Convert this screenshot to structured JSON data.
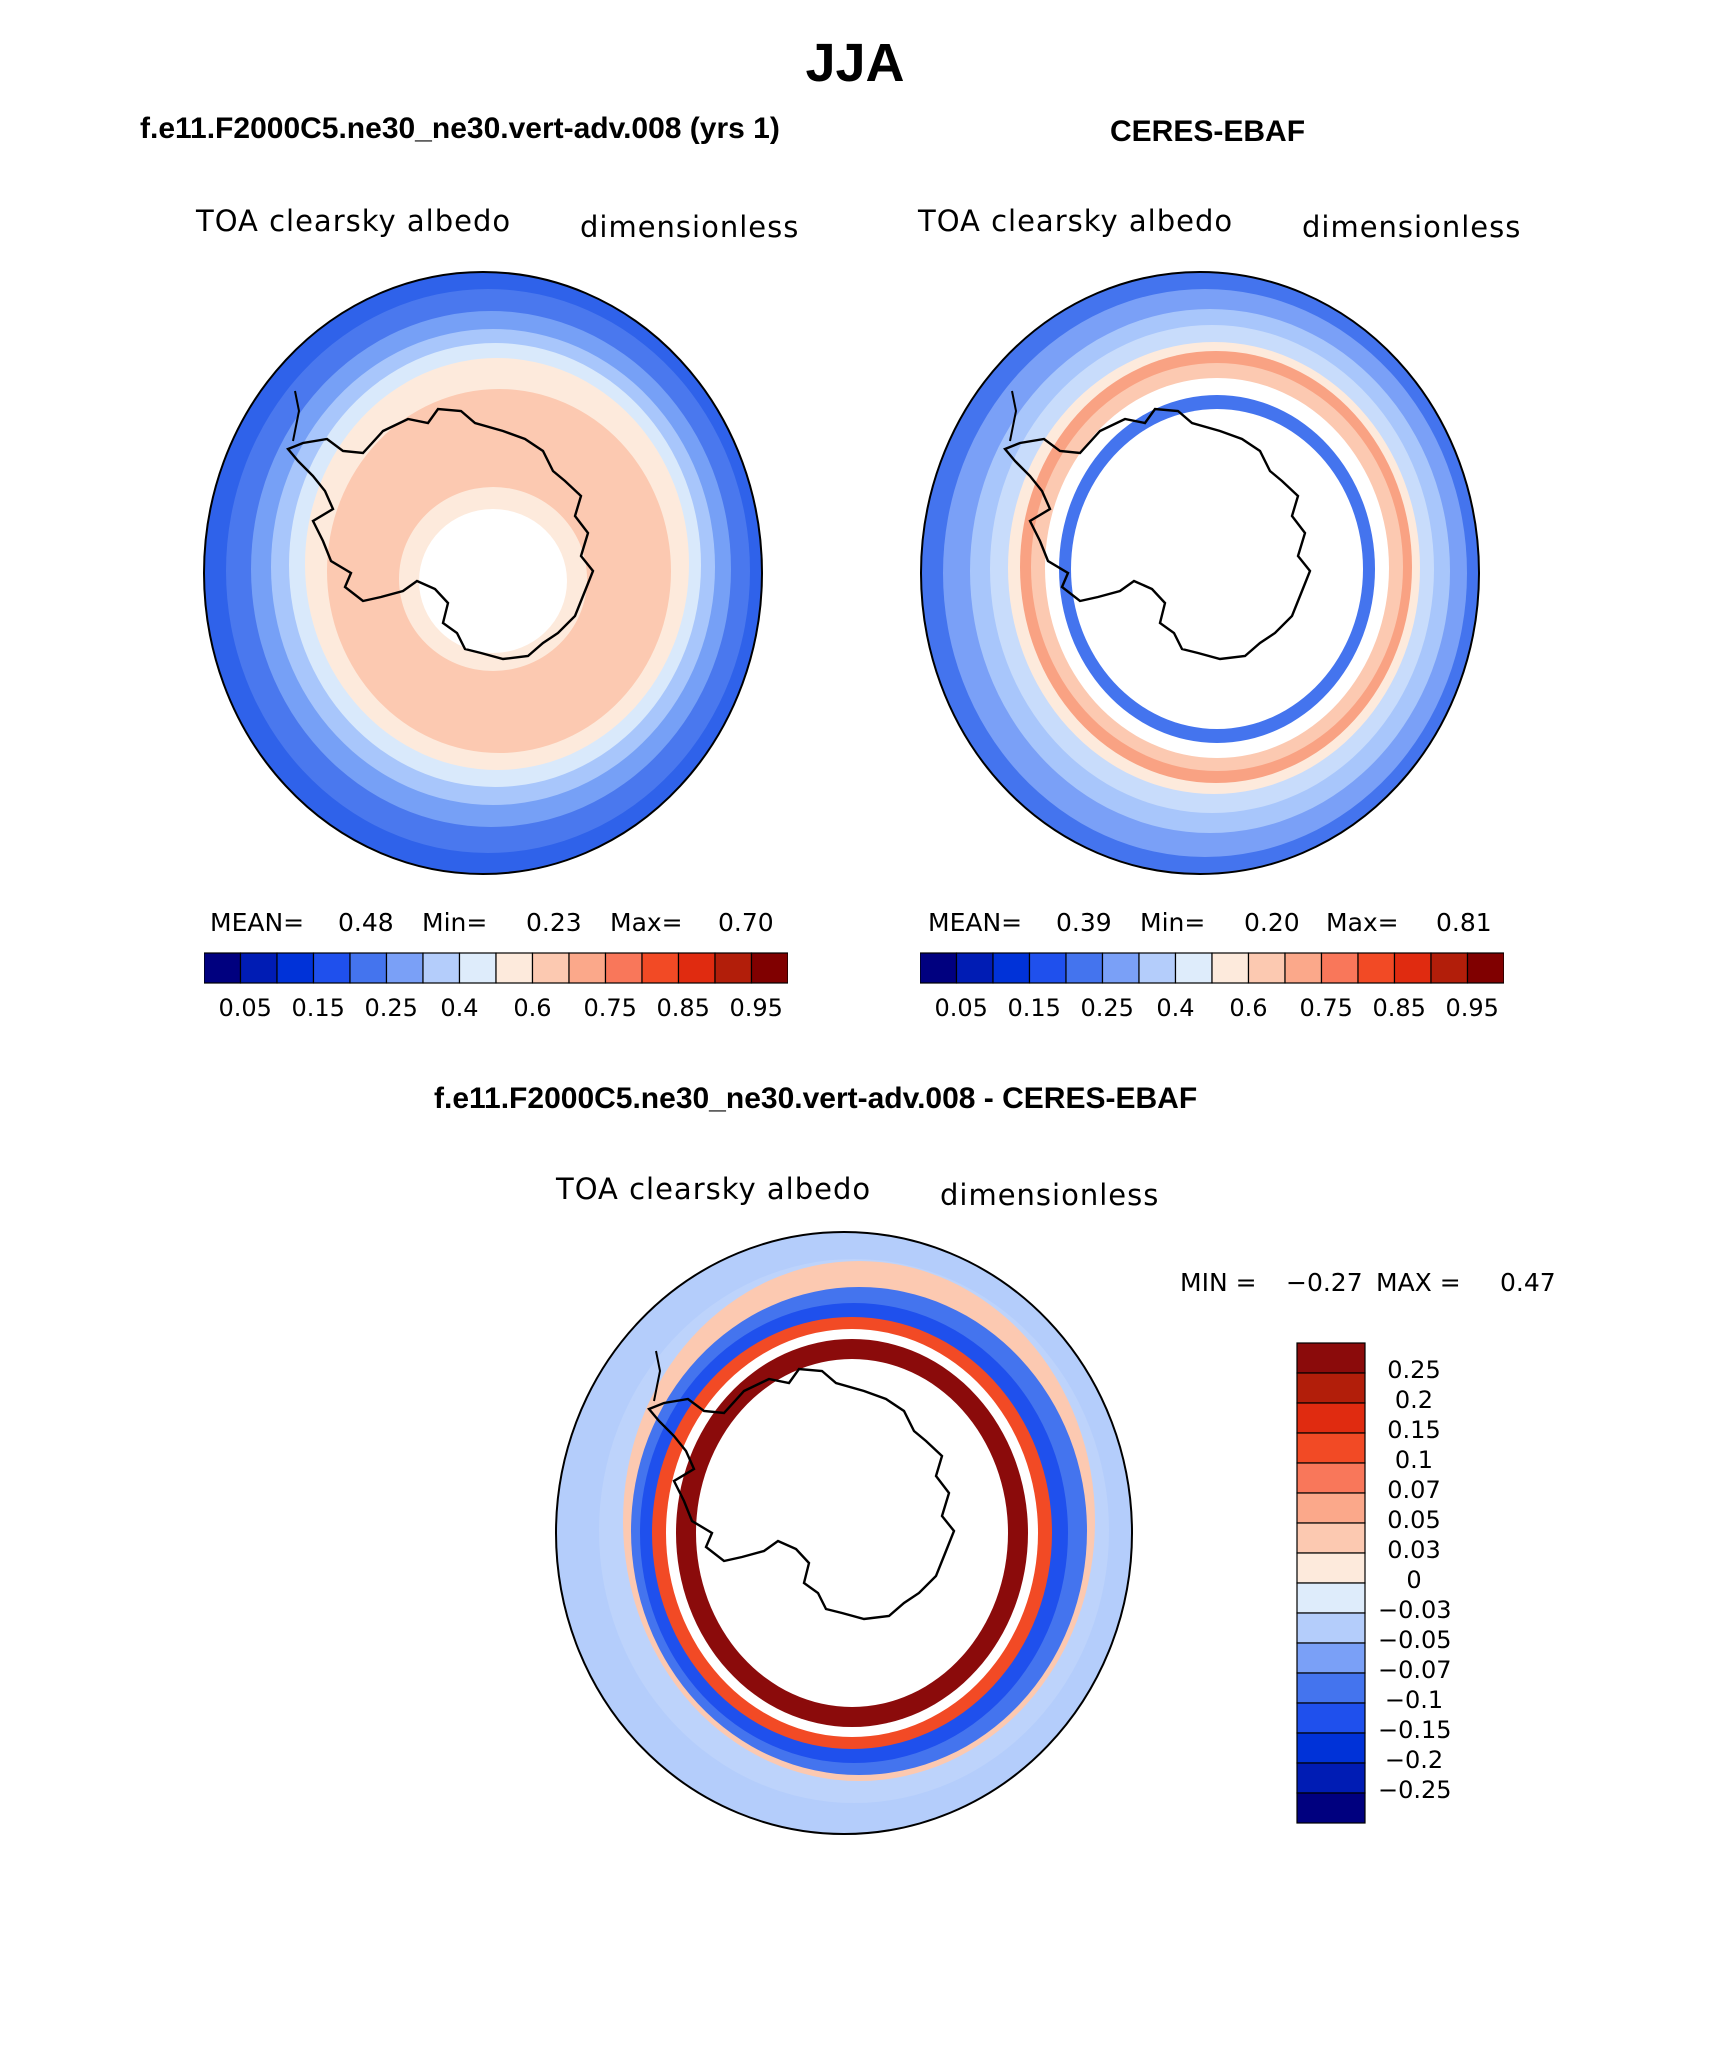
{
  "figure": {
    "title": "JJA"
  },
  "panels": [
    {
      "title": "f.e11.F2000C5.ne30_ne30.vert-adv.008 (yrs 1)",
      "variable": "TOA clearsky albedo",
      "units": "dimensionless",
      "stats": {
        "mean_label": "MEAN=",
        "mean": "0.48",
        "min_label": "Min=",
        "min": "0.23",
        "max_label": "Max=",
        "max": "0.70"
      }
    },
    {
      "title": "CERES-EBAF",
      "variable": "TOA clearsky albedo",
      "units": "dimensionless",
      "stats": {
        "mean_label": "MEAN=",
        "mean": "0.39",
        "min_label": "Min=",
        "min": "0.20",
        "max_label": "Max=",
        "max": "0.81"
      }
    },
    {
      "title": "f.e11.F2000C5.ne30_ne30.vert-adv.008 - CERES-EBAF",
      "variable": "TOA clearsky albedo",
      "units": "dimensionless",
      "stats": {
        "min_label": "MIN =",
        "min": "−0.27",
        "max_label": "MAX =",
        "max": "0.47"
      }
    }
  ],
  "colorbars": {
    "absolute": {
      "colors": [
        "#00007f",
        "#001cb4",
        "#0032d8",
        "#1f50ed",
        "#4474ee",
        "#7aa0f7",
        "#b4cdfb",
        "#deecfb",
        "#fdeadc",
        "#fcc9b1",
        "#fba88a",
        "#f9775a",
        "#f24a25",
        "#e02b10",
        "#b21e0a",
        "#800000"
      ],
      "labels": [
        "0.05",
        "0.15",
        "0.25",
        "0.4",
        "0.6",
        "0.75",
        "0.85",
        "0.95"
      ]
    },
    "difference": {
      "colors_top_to_bottom": [
        "#8b0b0b",
        "#b21e0a",
        "#e02b10",
        "#f24a25",
        "#f9775a",
        "#fba88a",
        "#fcc9b1",
        "#fdeadc",
        "#deecfb",
        "#b4cdfb",
        "#7aa0f7",
        "#4474ee",
        "#1f50ed",
        "#0032d8",
        "#001cb4",
        "#00007f"
      ],
      "labels": [
        "0.25",
        "0.2",
        "0.15",
        "0.1",
        "0.07",
        "0.05",
        "0.03",
        "0",
        "−0.03",
        "−0.05",
        "−0.07",
        "−0.1",
        "−0.15",
        "−0.2",
        "−0.25"
      ]
    }
  },
  "map_layers": {
    "model_rings": [
      "#4a78ee",
      "#76a0f6",
      "#a8c6fb",
      "#d9e9fb",
      "#fdeadc",
      "#fcc9b1"
    ],
    "obs_rings": [
      "#7aa0f7",
      "#a8c6fb",
      "#c8dcfb",
      "#fdeadc",
      "#f9a283",
      "#fcc9b1",
      "#ffffff",
      "#4474ee",
      "#ffffff"
    ],
    "diff_rings": [
      "#bdd3fb",
      "#fcc9b1",
      "#4474ee",
      "#1f50ed",
      "#f24a25",
      "#ffffff",
      "#8b0b0b",
      "#ffffff"
    ],
    "coastline_color": "#000000"
  }
}
